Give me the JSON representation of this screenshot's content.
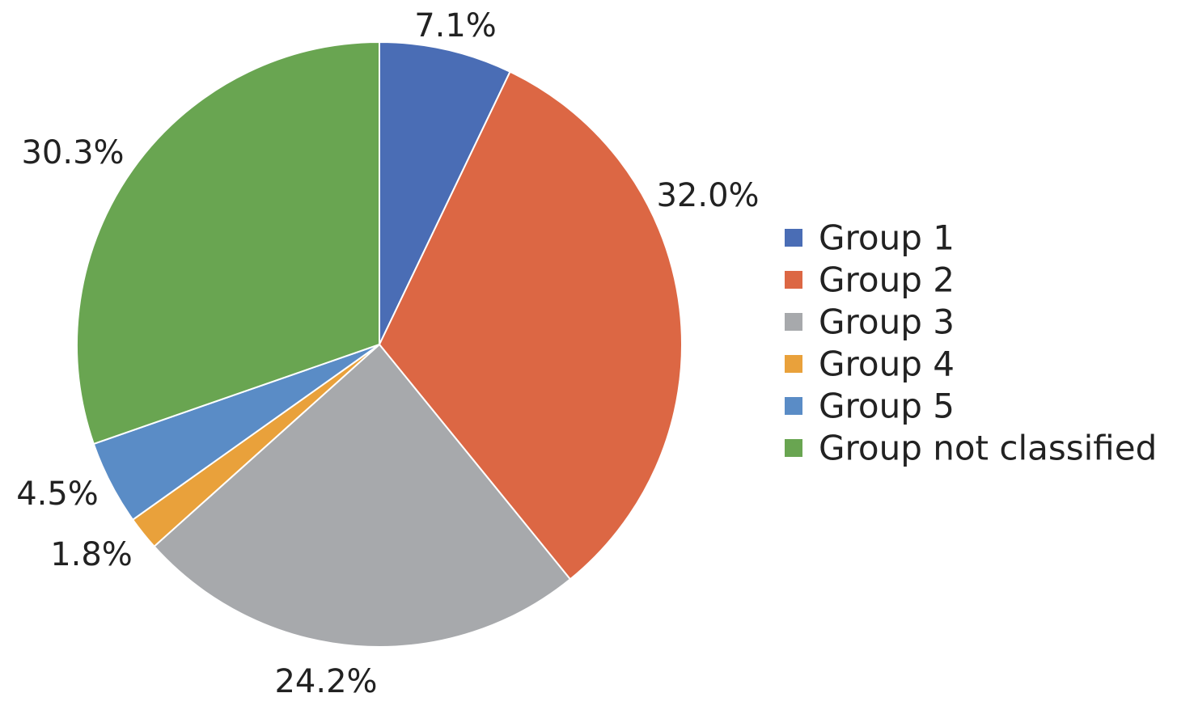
{
  "chart_data": {
    "type": "pie",
    "title": "",
    "legend_position": "right",
    "start_angle_deg": 0,
    "direction": "clockwise",
    "slices": [
      {
        "name": "Group 1",
        "value": 7.1,
        "label": "7.1%",
        "color": "#4a6db5"
      },
      {
        "name": "Group 2",
        "value": 32.0,
        "label": "32.0%",
        "color": "#dc6744"
      },
      {
        "name": "Group 3",
        "value": 24.2,
        "label": "24.2%",
        "color": "#a7a9ac"
      },
      {
        "name": "Group 4",
        "value": 1.8,
        "label": "1.8%",
        "color": "#e9a13b"
      },
      {
        "name": "Group 5",
        "value": 4.5,
        "label": "4.5%",
        "color": "#5a8cc6"
      },
      {
        "name": "Group not classified",
        "value": 30.3,
        "label": "30.3%",
        "color": "#69a551"
      }
    ]
  }
}
